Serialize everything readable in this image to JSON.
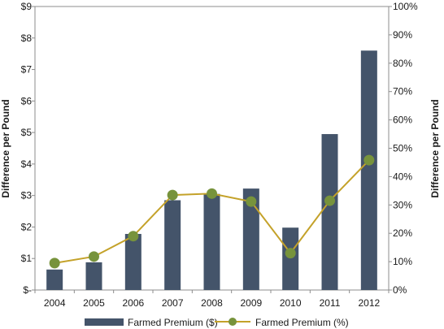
{
  "chart_data": {
    "type": "bar",
    "categories": [
      "2004",
      "2005",
      "2006",
      "2007",
      "2008",
      "2009",
      "2010",
      "2011",
      "2012"
    ],
    "series": [
      {
        "name": "Farmed Premium ($)",
        "type": "bar",
        "axis": "left",
        "color": "#44546a",
        "values": [
          0.65,
          0.88,
          1.78,
          2.85,
          3.05,
          3.22,
          1.98,
          4.95,
          7.6
        ]
      },
      {
        "name": "Farmed Premium (%)",
        "type": "line",
        "axis": "right",
        "line_color": "#c4a22a",
        "marker_color": "#77933c",
        "values": [
          9.5,
          11.8,
          19.0,
          33.5,
          34.0,
          31.2,
          13.0,
          31.5,
          45.8
        ]
      }
    ],
    "ylabel": "Difference per Pound",
    "y2label": "Difference per Pound",
    "ylim": [
      0,
      9
    ],
    "y2lim": [
      0,
      100
    ],
    "yticks": [
      "$-",
      "$1",
      "$2",
      "$3",
      "$4",
      "$5",
      "$6",
      "$7",
      "$8",
      "$9"
    ],
    "y2ticks": [
      "0%",
      "10%",
      "20%",
      "30%",
      "40%",
      "50%",
      "60%",
      "70%",
      "80%",
      "90%",
      "100%"
    ],
    "grid": false,
    "legend_position": "bottom"
  }
}
